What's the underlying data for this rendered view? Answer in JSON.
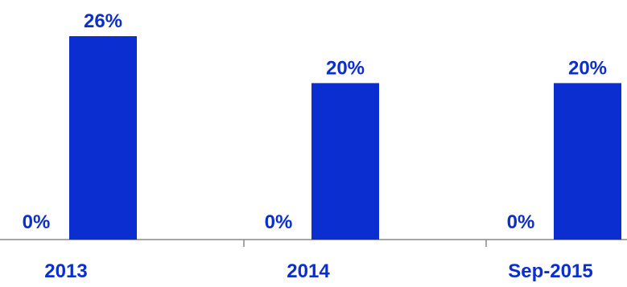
{
  "chart_data": {
    "type": "bar",
    "categories": [
      "2013",
      "2014",
      "Sep-2015"
    ],
    "series": [
      {
        "values": [
          0,
          0,
          0
        ]
      },
      {
        "values": [
          26,
          20,
          20
        ]
      }
    ],
    "data_labels": [
      [
        "0%",
        "0%",
        "0%"
      ],
      [
        "26%",
        "20%",
        "20%"
      ]
    ],
    "ylim": [
      0,
      26
    ],
    "grid": false,
    "legend": "none",
    "colors": {
      "bar": "#0a2ecf",
      "label": "#0a2ecf",
      "axis": "#888888"
    }
  }
}
